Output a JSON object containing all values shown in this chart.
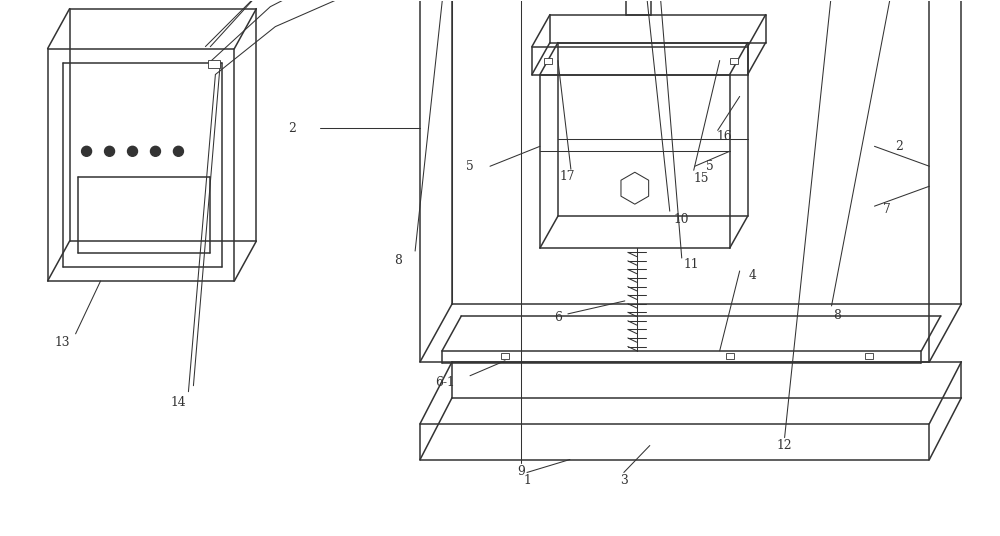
{
  "bg": "#ffffff",
  "lc": "#333333",
  "lw": 1.1,
  "lw_t": 0.75
}
